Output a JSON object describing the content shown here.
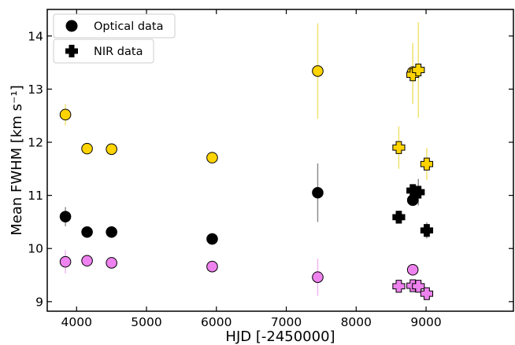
{
  "chart_data": {
    "type": "scatter",
    "xlabel": "HJD [-2450000]",
    "ylabel": "Mean FWHM [km s⁻¹]",
    "xlim": [
      3580,
      10250
    ],
    "ylim": [
      8.82,
      14.5
    ],
    "xticks": [
      4000,
      5000,
      6000,
      7000,
      8000,
      9000
    ],
    "yticks": [
      9,
      10,
      11,
      12,
      13,
      14
    ],
    "grid": false,
    "legend_position": "top-left",
    "legend": [
      {
        "label": "Optical data",
        "marker": "circle"
      },
      {
        "label": "NIR data",
        "marker": "plus"
      }
    ],
    "colors": {
      "yellow": "#ffd400",
      "black": "#000000",
      "violet": "#ee82ee",
      "err_yellow": "#f0e26a",
      "err_black": "#888888",
      "err_violet": "#f2b3f2"
    },
    "series": [
      {
        "kind": "optical",
        "color": "yellow",
        "err_color": "err_yellow",
        "x": [
          3840,
          4150,
          4500,
          5940,
          7450,
          8810
        ],
        "y": [
          12.52,
          11.88,
          11.87,
          11.71,
          13.34,
          13.32
        ],
        "yerr": [
          0.2,
          0.1,
          0.1,
          0.1,
          0.9,
          0.55
        ]
      },
      {
        "kind": "optical",
        "color": "black",
        "err_color": "err_black",
        "x": [
          3840,
          4150,
          4500,
          5940,
          7450,
          8810
        ],
        "y": [
          10.6,
          10.31,
          10.31,
          10.18,
          11.05,
          10.91
        ],
        "yerr": [
          0.18,
          0.06,
          0.06,
          0.06,
          0.55,
          0.1
        ]
      },
      {
        "kind": "optical",
        "color": "violet",
        "err_color": "err_violet",
        "x": [
          3840,
          4150,
          4500,
          5940,
          7450,
          8810
        ],
        "y": [
          9.75,
          9.77,
          9.73,
          9.66,
          9.46,
          9.6
        ],
        "yerr": [
          0.22,
          0.08,
          0.08,
          0.1,
          0.35,
          0.1
        ]
      },
      {
        "kind": "nir",
        "color": "yellow",
        "err_color": "err_yellow",
        "x": [
          8610,
          8810,
          8890,
          9010
        ],
        "y": [
          11.9,
          13.27,
          13.36,
          11.59
        ],
        "yerr": [
          0.4,
          0.55,
          0.9,
          0.3
        ]
      },
      {
        "kind": "nir",
        "color": "black",
        "err_color": "err_black",
        "x": [
          8610,
          8810,
          8890,
          9010
        ],
        "y": [
          10.59,
          11.09,
          11.06,
          10.34
        ],
        "yerr": [
          0.12,
          0.12,
          0.25,
          0.15
        ]
      },
      {
        "kind": "nir",
        "color": "violet",
        "err_color": "err_violet",
        "x": [
          8610,
          8810,
          8890,
          9010
        ],
        "y": [
          9.29,
          9.3,
          9.29,
          9.15
        ],
        "yerr": [
          0.08,
          0.08,
          0.06,
          0.1
        ]
      }
    ]
  }
}
